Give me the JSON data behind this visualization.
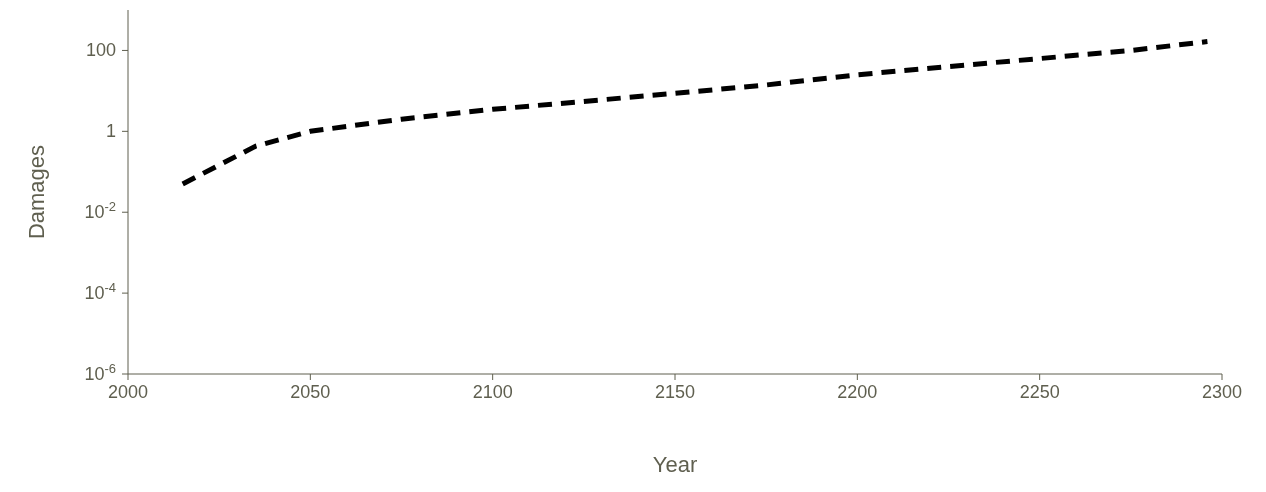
{
  "chart_data": {
    "type": "line",
    "xlabel": "Year",
    "ylabel": "Damages",
    "x": [
      2015,
      2035,
      2050,
      2075,
      2100,
      2125,
      2150,
      2175,
      2200,
      2225,
      2250,
      2275,
      2296
    ],
    "series": [
      {
        "color": "#000000",
        "values": [
          0.05,
          0.43,
          1,
          2,
          3.5,
          5.5,
          8.7,
          14,
          25,
          40,
          63,
          100,
          166
        ]
      }
    ],
    "xlim": [
      2000,
      2300
    ],
    "xticks": [
      2000,
      2050,
      2100,
      2150,
      2200,
      2250,
      2300
    ],
    "ylim": [
      1e-06,
      1000
    ],
    "yticks": [
      {
        "value": 1e-06,
        "label": "10$^{-6}$"
      },
      {
        "value": 0.0001,
        "label": "10$^{-4}$"
      },
      {
        "value": 0.01,
        "label": "10$^{-2}$"
      },
      1,
      100
    ],
    "log": "y",
    "grid": false,
    "legend": false,
    "marker": "none",
    "line_style": "dashed"
  }
}
